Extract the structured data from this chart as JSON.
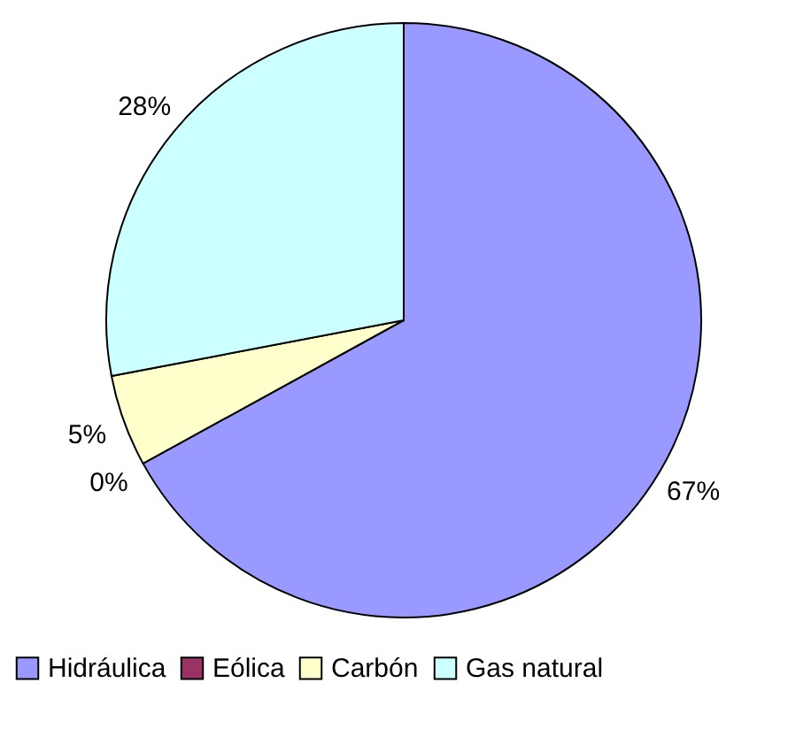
{
  "chart_data": {
    "type": "pie",
    "categories": [
      "Hidráulica",
      "Eólica",
      "Carbón",
      "Gas natural"
    ],
    "values": [
      67,
      0,
      5,
      28
    ],
    "colors": [
      "#9999ff",
      "#993366",
      "#ffffcc",
      "#ccffff"
    ],
    "value_labels": [
      "67%",
      "0%",
      "5%",
      "28%"
    ],
    "legend": "bottom"
  }
}
